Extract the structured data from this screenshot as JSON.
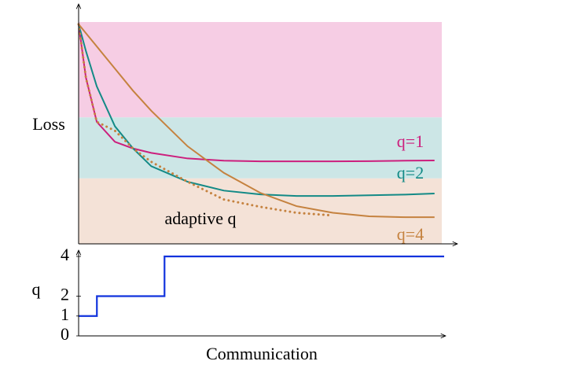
{
  "chart_data": [
    {
      "type": "line",
      "ylabel": "Loss",
      "xlim": [
        0,
        1
      ],
      "ylim": [
        0,
        1
      ],
      "bands": [
        {
          "from": 0.57,
          "to": 1,
          "color": "#f6cde4"
        },
        {
          "from": 0.295,
          "to": 0.57,
          "color": "#cce6e6"
        },
        {
          "from": 0,
          "to": 0.295,
          "color": "#f4e2d7"
        }
      ],
      "x": [
        0,
        0.02,
        0.05,
        0.1,
        0.15,
        0.2,
        0.3,
        0.4,
        0.5,
        0.6,
        0.7,
        0.8,
        0.9,
        0.98
      ],
      "series": [
        {
          "name": "q=1",
          "color": "#cc1f7d",
          "values": [
            0.99,
            0.75,
            0.55,
            0.46,
            0.43,
            0.41,
            0.385,
            0.375,
            0.372,
            0.372,
            0.372,
            0.373,
            0.375,
            0.376
          ]
        },
        {
          "name": "q=2",
          "color": "#138a86",
          "values": [
            0.99,
            0.87,
            0.71,
            0.53,
            0.43,
            0.35,
            0.28,
            0.24,
            0.223,
            0.216,
            0.216,
            0.219,
            0.222,
            0.227
          ]
        },
        {
          "name": "q=4",
          "color": "#c5823f",
          "values": [
            0.99,
            0.95,
            0.89,
            0.79,
            0.69,
            0.6,
            0.44,
            0.32,
            0.23,
            0.17,
            0.14,
            0.124,
            0.12,
            0.12
          ]
        },
        {
          "name": "adaptive q",
          "color": "#c5823f",
          "dotted": true,
          "values": [
            0.99,
            0.75,
            0.55,
            0.51,
            0.43,
            0.37,
            0.28,
            0.2,
            0.167,
            0.14,
            0.128,
            null,
            null,
            null
          ]
        }
      ]
    },
    {
      "type": "step",
      "ylabel": "q",
      "xlabel": "Communication",
      "xlim": [
        0,
        1
      ],
      "ylim": [
        0,
        4
      ],
      "yticks": [
        0,
        1,
        2,
        4
      ],
      "x": [
        0,
        0.05,
        0.235,
        1
      ],
      "values": [
        1,
        2,
        4,
        4
      ],
      "color": "#1133dd"
    }
  ]
}
